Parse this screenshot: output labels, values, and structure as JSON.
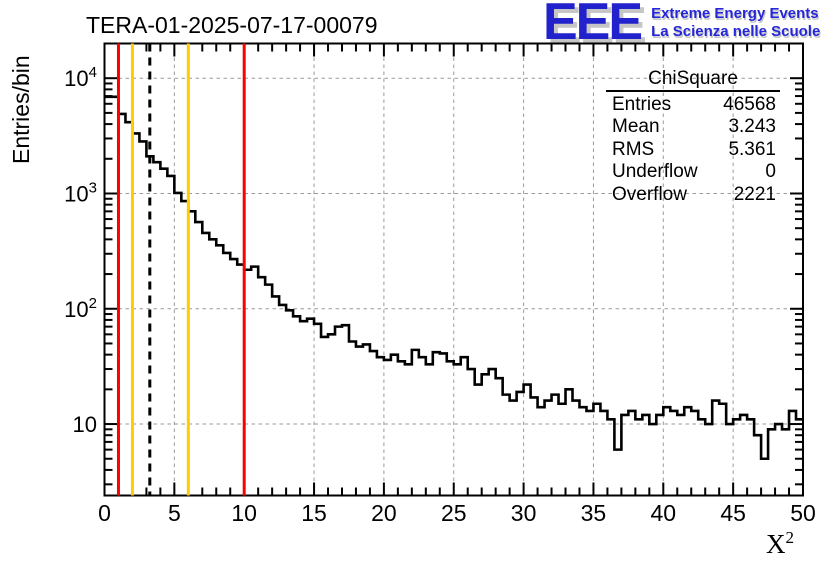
{
  "title": "TERA-01-2025-07-17-00079",
  "logo": {
    "eee": "EEE",
    "line1": "Extreme Energy Events",
    "line2": "La Scienza nelle Scuole",
    "color": "#2222cc"
  },
  "stats": {
    "title": "ChiSquare",
    "rows": [
      {
        "label": "Entries",
        "value": "46568"
      },
      {
        "label": "Mean",
        "value": "3.243"
      },
      {
        "label": "RMS",
        "value": "5.361"
      },
      {
        "label": "Underflow",
        "value": "0"
      },
      {
        "label": "Overflow",
        "value": "2221"
      }
    ]
  },
  "chart_data": {
    "type": "bar",
    "style": "step-histogram",
    "title": "TERA-01-2025-07-17-00079",
    "xlabel": "X^2",
    "xlabel_base": "X",
    "xlabel_sup": "2",
    "ylabel": "Entries/bin",
    "xlim": [
      0,
      50
    ],
    "ylim": [
      2.4,
      20000
    ],
    "yscale": "log",
    "grid": true,
    "grid_color": "#9a9a9a",
    "xticks": [
      0,
      5,
      10,
      15,
      20,
      25,
      30,
      35,
      40,
      45,
      50
    ],
    "ytick_exponents": [
      1,
      2,
      3,
      4
    ],
    "bin_start": 0,
    "bin_width": 0.5,
    "values": [
      6900,
      6900,
      4900,
      4150,
      3320,
      2830,
      2100,
      1870,
      1640,
      1420,
      1010,
      860,
      700,
      565,
      455,
      400,
      355,
      305,
      270,
      242,
      218,
      232,
      188,
      162,
      128,
      108,
      97,
      86,
      78,
      82,
      74,
      57,
      60,
      70,
      72,
      52,
      47,
      49,
      43,
      38,
      36,
      40,
      35,
      33,
      44,
      38,
      33,
      42,
      41,
      35,
      33,
      38,
      30,
      22,
      27,
      30,
      25,
      18,
      16,
      19,
      22,
      17,
      14,
      16,
      18,
      15,
      20,
      16,
      14,
      13,
      15,
      13,
      11,
      6,
      12,
      13,
      11,
      12,
      10,
      12,
      14,
      13,
      12,
      14,
      13,
      11,
      10,
      16,
      15,
      10,
      11,
      12,
      11,
      8,
      5,
      9,
      10,
      9,
      13,
      11
    ],
    "line_color": "#000000",
    "marker_lines": [
      {
        "x": 1,
        "color": "#ff0000",
        "style": "solid"
      },
      {
        "x": 2,
        "color": "#ffcc00",
        "style": "solid"
      },
      {
        "x": 3.243,
        "color": "#000000",
        "style": "dashed"
      },
      {
        "x": 6,
        "color": "#ffcc00",
        "style": "solid"
      },
      {
        "x": 10,
        "color": "#ff0000",
        "style": "solid"
      }
    ]
  }
}
